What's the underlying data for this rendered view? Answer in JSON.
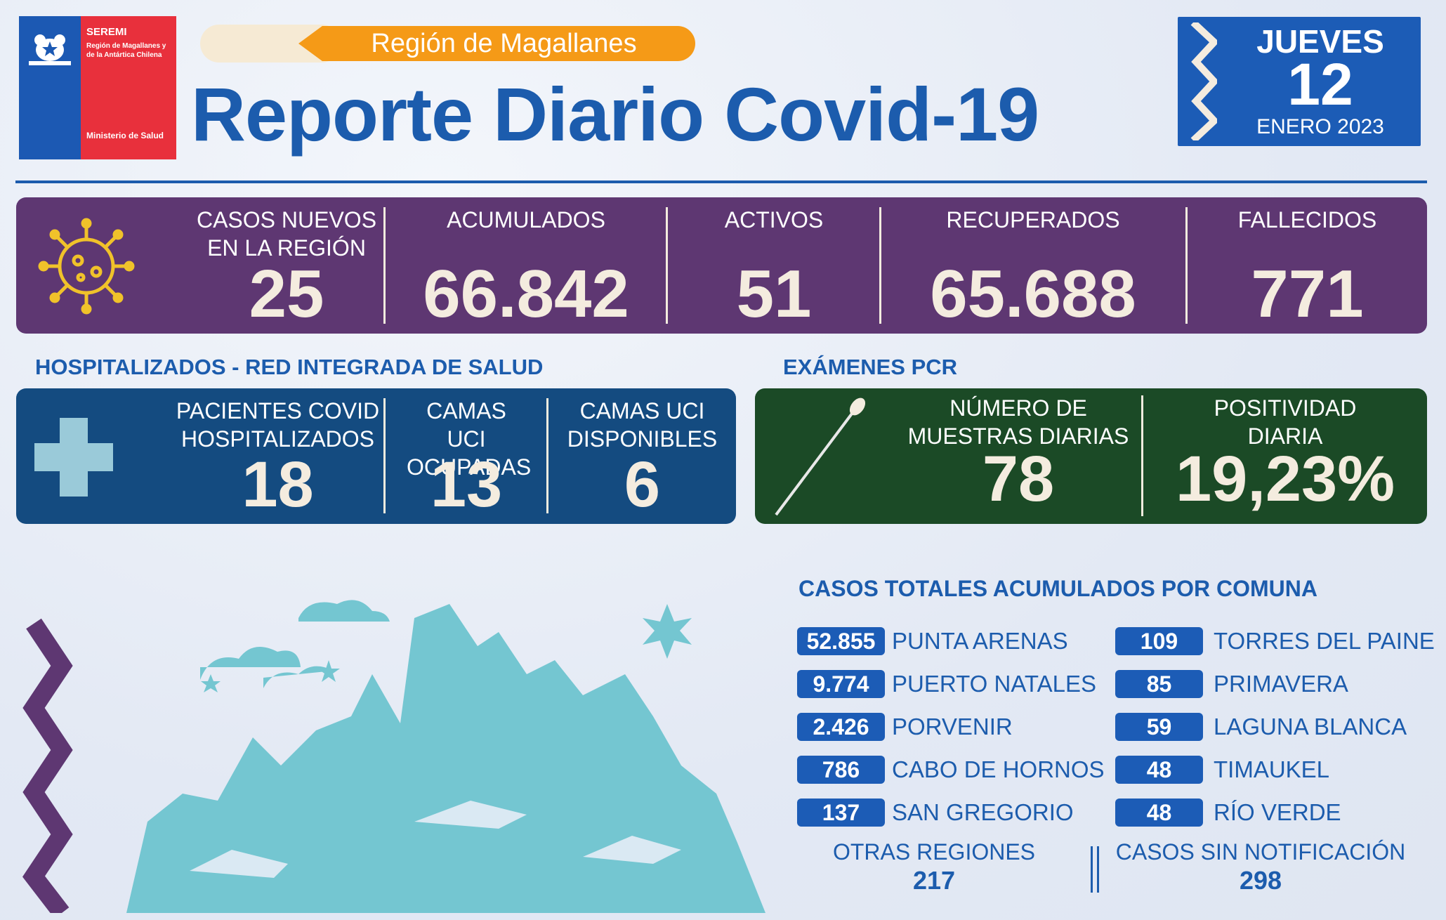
{
  "logo": {
    "title": "SEREMI",
    "subtitle": "Región de Magallanes y de la Antártica Chilena",
    "ministry": "Ministerio de Salud"
  },
  "header": {
    "region": "Región de Magallanes",
    "title": "Reporte Diario Covid-19"
  },
  "date": {
    "weekday": "JUEVES",
    "day": "12",
    "month_year": "ENERO 2023"
  },
  "stats": {
    "new_cases_label": "CASOS NUEVOS EN LA REGIÓN",
    "new_cases": "25",
    "accumulated_label": "ACUMULADOS",
    "accumulated": "66.842",
    "active_label": "ACTIVOS",
    "active": "51",
    "recovered_label": "RECUPERADOS",
    "recovered": "65.688",
    "deaths_label": "FALLECIDOS",
    "deaths": "771"
  },
  "hospital": {
    "section": "HOSPITALIZADOS - RED INTEGRADA DE SALUD",
    "patients_label": "PACIENTES COVID HOSPITALIZADOS",
    "patients": "18",
    "icu_occupied_label": "CAMAS UCI OCUPADAS",
    "icu_occupied": "13",
    "icu_available_label": "CAMAS UCI DISPONIBLES",
    "icu_available": "6"
  },
  "pcr": {
    "section": "EXÁMENES PCR",
    "samples_label": "NÚMERO DE MUESTRAS DIARIAS",
    "samples": "78",
    "positivity_label": "POSITIVIDAD DIARIA",
    "positivity": "19,23%"
  },
  "comunas": {
    "section": "CASOS TOTALES ACUMULADOS POR COMUNA",
    "left": [
      {
        "value": "52.855",
        "name": "PUNTA ARENAS"
      },
      {
        "value": "9.774",
        "name": "PUERTO NATALES"
      },
      {
        "value": "2.426",
        "name": "PORVENIR"
      },
      {
        "value": "786",
        "name": "CABO DE HORNOS"
      },
      {
        "value": "137",
        "name": "SAN GREGORIO"
      }
    ],
    "right": [
      {
        "value": "109",
        "name": "TORRES DEL PAINE"
      },
      {
        "value": "85",
        "name": "PRIMAVERA"
      },
      {
        "value": "59",
        "name": "LAGUNA BLANCA"
      },
      {
        "value": "48",
        "name": "TIMAUKEL"
      },
      {
        "value": "48",
        "name": "RÍO VERDE"
      }
    ],
    "other_regions_label": "OTRAS REGIONES",
    "other_regions": "217",
    "no_notification_label": "CASOS SIN NOTIFICACIÓN",
    "no_notification": "298"
  },
  "colors": {
    "blue": "#1c5cad",
    "purple": "#5e3772",
    "hospital": "#144b80",
    "pcr": "#1b4a26",
    "orange": "#f59a17",
    "red": "#e8303c",
    "mountain": "#74c6d1"
  },
  "icons": [
    "virus-icon",
    "medical-cross-icon",
    "swab-icon",
    "mountain-illustration",
    "zigzag-decoration"
  ]
}
